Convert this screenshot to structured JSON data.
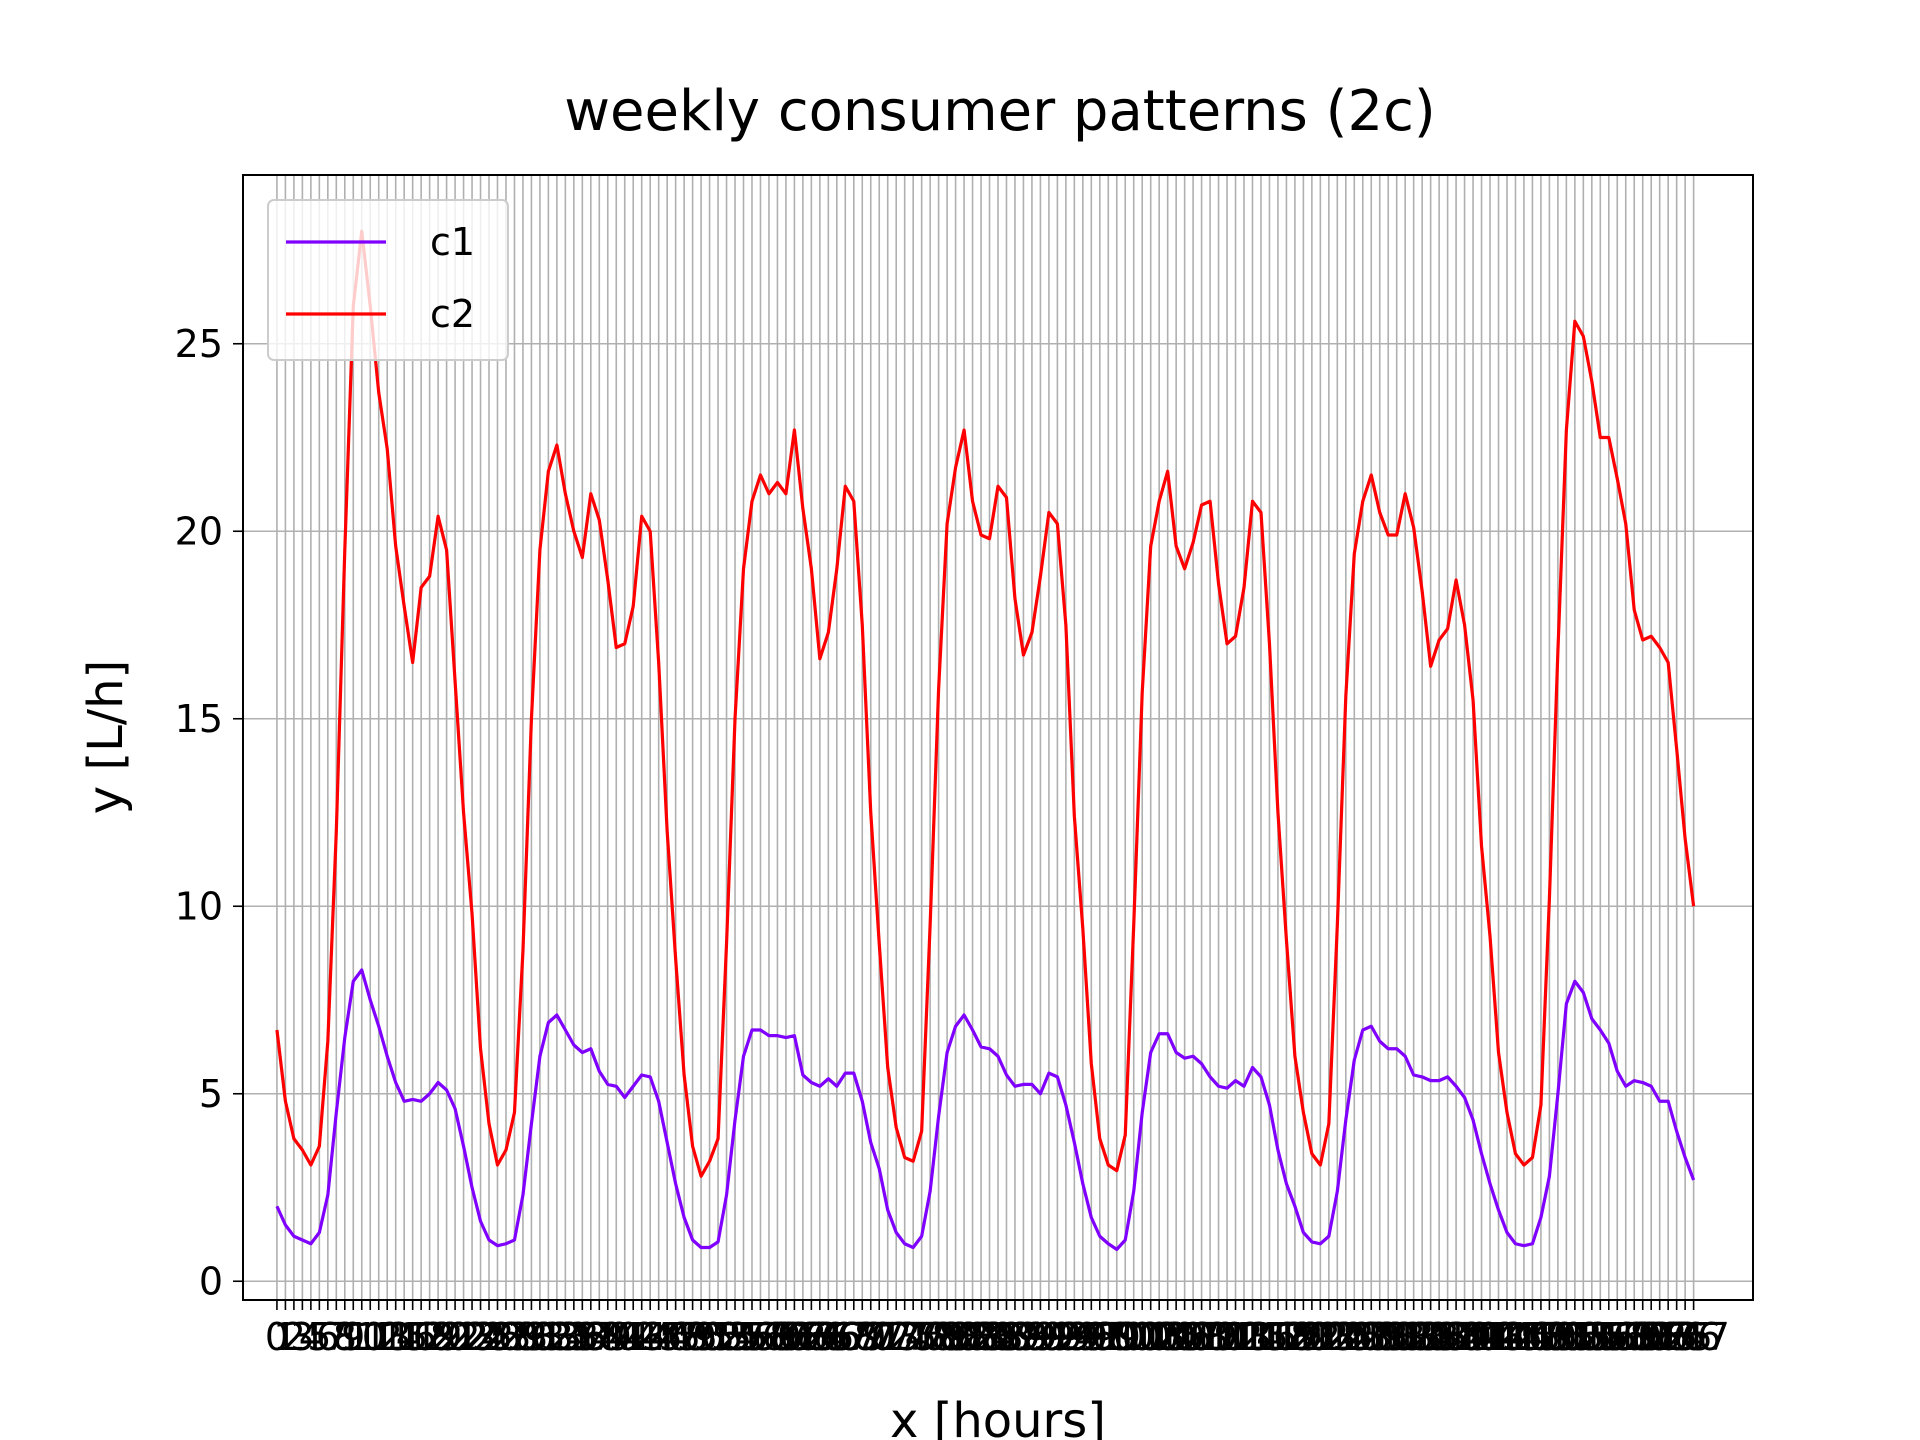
{
  "chart_data": {
    "type": "line",
    "title": "weekly consumer patterns (2c)",
    "xlabel": "x [hours]",
    "ylabel": "y [L/h]",
    "xlim": [
      -4,
      174
    ],
    "ylim": [
      -0.5,
      29.5
    ],
    "yticks": [
      0,
      5,
      10,
      15,
      20,
      25
    ],
    "grid": true,
    "legend_position": "upper-left",
    "x_tick_step": 1,
    "x_tick_last": 167,
    "series": [
      {
        "name": "c1",
        "color": "#7f00ff",
        "values": [
          2.0,
          1.5,
          1.2,
          1.1,
          1.0,
          1.3,
          2.3,
          4.5,
          6.5,
          8.0,
          8.3,
          7.5,
          6.8,
          6.0,
          5.3,
          4.8,
          4.85,
          4.8,
          5.0,
          5.3,
          5.1,
          4.6,
          3.6,
          2.5,
          1.6,
          1.1,
          0.95,
          1.0,
          1.1,
          2.3,
          4.2,
          6.0,
          6.9,
          7.1,
          6.7,
          6.3,
          6.1,
          6.2,
          5.6,
          5.25,
          5.2,
          4.9,
          5.2,
          5.5,
          5.45,
          4.8,
          3.7,
          2.6,
          1.7,
          1.1,
          0.9,
          0.9,
          1.05,
          2.3,
          4.3,
          6.0,
          6.7,
          6.7,
          6.55,
          6.55,
          6.5,
          6.55,
          5.5,
          5.3,
          5.2,
          5.4,
          5.2,
          5.55,
          5.55,
          4.8,
          3.7,
          3.0,
          1.9,
          1.3,
          1.0,
          0.9,
          1.2,
          2.4,
          4.4,
          6.1,
          6.8,
          7.1,
          6.7,
          6.25,
          6.2,
          6.0,
          5.5,
          5.2,
          5.25,
          5.25,
          5.0,
          5.55,
          5.45,
          4.7,
          3.7,
          2.6,
          1.7,
          1.2,
          1.0,
          0.85,
          1.1,
          2.4,
          4.5,
          6.1,
          6.6,
          6.6,
          6.1,
          5.95,
          6.0,
          5.8,
          5.45,
          5.2,
          5.15,
          5.35,
          5.2,
          5.7,
          5.45,
          4.7,
          3.5,
          2.6,
          2.0,
          1.3,
          1.05,
          1.0,
          1.2,
          2.4,
          4.3,
          5.9,
          6.7,
          6.8,
          6.4,
          6.2,
          6.2,
          6.0,
          5.5,
          5.45,
          5.35,
          5.35,
          5.45,
          5.2,
          4.9,
          4.3,
          3.4,
          2.6,
          1.9,
          1.3,
          1.0,
          0.95,
          1.0,
          1.7,
          2.8,
          5.0,
          7.4,
          8.0,
          7.7,
          7.0,
          6.7,
          6.35,
          5.6,
          5.2,
          5.35,
          5.3,
          5.2,
          4.8,
          4.8,
          4.0,
          3.3,
          2.7
        ]
      },
      {
        "name": "c2",
        "color": "#ff0000",
        "values": [
          6.7,
          4.8,
          3.8,
          3.5,
          3.1,
          3.6,
          6.4,
          12.0,
          19.5,
          26.0,
          28.0,
          26.0,
          23.7,
          22.2,
          19.6,
          18.0,
          16.5,
          18.5,
          18.8,
          20.4,
          19.5,
          16.0,
          12.5,
          9.8,
          6.2,
          4.2,
          3.1,
          3.5,
          4.5,
          8.8,
          15.0,
          19.5,
          21.6,
          22.3,
          21.0,
          20.0,
          19.3,
          21.0,
          20.3,
          18.7,
          16.9,
          17.0,
          18.0,
          20.4,
          20.0,
          16.5,
          12.0,
          8.6,
          5.5,
          3.6,
          2.8,
          3.2,
          3.8,
          9.0,
          15.0,
          19.0,
          20.8,
          21.5,
          21.0,
          21.3,
          21.0,
          22.7,
          20.6,
          19.0,
          16.6,
          17.3,
          19.0,
          21.2,
          20.8,
          17.5,
          12.5,
          9.0,
          5.7,
          4.1,
          3.3,
          3.2,
          4.0,
          9.5,
          15.8,
          20.2,
          21.7,
          22.7,
          20.8,
          19.9,
          19.8,
          21.2,
          20.9,
          18.2,
          16.7,
          17.3,
          18.8,
          20.5,
          20.2,
          17.5,
          12.4,
          9.4,
          5.8,
          3.8,
          3.1,
          2.95,
          3.9,
          9.5,
          15.7,
          19.6,
          20.8,
          21.6,
          19.6,
          19.0,
          19.7,
          20.7,
          20.8,
          18.6,
          17.0,
          17.2,
          18.5,
          20.8,
          20.5,
          17.0,
          12.5,
          9.1,
          6.0,
          4.5,
          3.4,
          3.1,
          4.2,
          9.5,
          15.6,
          19.4,
          20.8,
          21.5,
          20.5,
          19.9,
          19.9,
          21.0,
          20.1,
          18.4,
          16.4,
          17.1,
          17.4,
          18.7,
          17.5,
          15.5,
          11.6,
          9.2,
          6.1,
          4.5,
          3.4,
          3.1,
          3.3,
          4.7,
          10.2,
          16.8,
          22.7,
          25.6,
          25.2,
          24.0,
          22.5,
          22.5,
          21.4,
          20.2,
          17.9,
          17.1,
          17.2,
          16.9,
          16.5,
          14.2,
          11.8,
          10.0
        ]
      }
    ]
  }
}
